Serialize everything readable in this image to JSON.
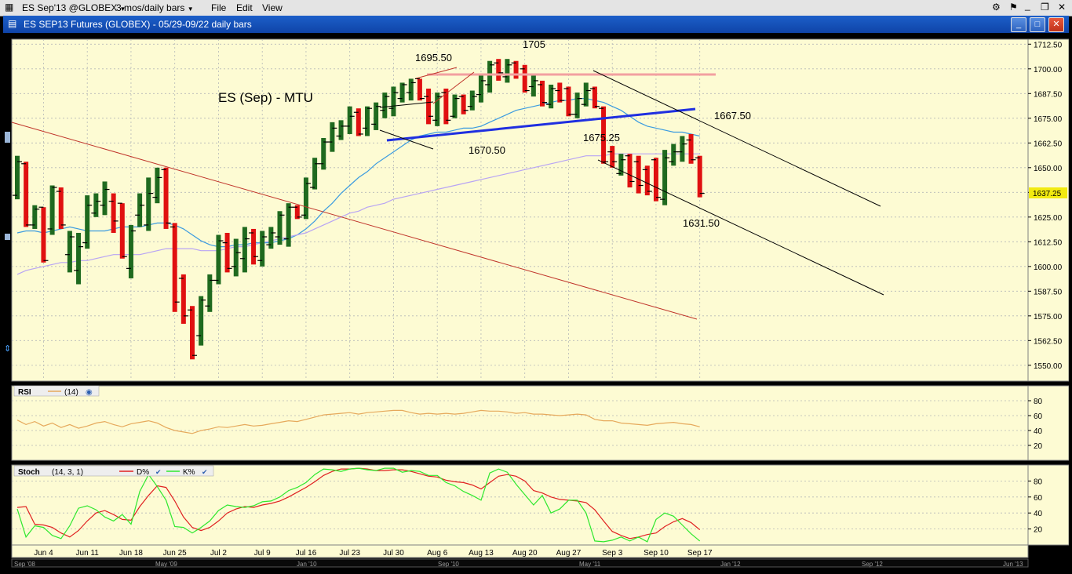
{
  "window": {
    "symbol_dropdown": "ES Sep'13 @GLOBEX",
    "period_dropdown": "3 mos/daily bars",
    "menu": [
      "File",
      "Edit",
      "View"
    ],
    "title": "ES SEP13 Futures (GLOBEX) - 05/29-09/22 daily bars"
  },
  "chart_data": [
    {
      "type": "ohlc-bar",
      "panel": "price",
      "annotation_title": "ES (Sep) - MTU",
      "yticks": [
        1712.5,
        1700.0,
        1687.5,
        1675.0,
        1662.5,
        1650.0,
        1637.5,
        1625.0,
        1612.5,
        1600.0,
        1587.5,
        1575.0,
        1562.5,
        1550.0
      ],
      "ylim": [
        1542,
        1715
      ],
      "last_price": "1637.25",
      "xticks": [
        "Jun 4",
        "Jun 11",
        "Jun 18",
        "Jun 25",
        "Jul 2",
        "Jul 9",
        "Jul 16",
        "Jul 23",
        "Jul 30",
        "Aug 6",
        "Aug 13",
        "Aug 20",
        "Aug 27",
        "Sep 3",
        "Sep 10",
        "Sep 17"
      ],
      "bottom_ticks": [
        "Sep '08",
        "May '09",
        "Jan '10",
        "Sep '10",
        "May '11",
        "Jan '12",
        "Sep '12",
        "Jun '13"
      ],
      "bars": [
        {
          "h": 1656,
          "l": 1634,
          "o": 1636,
          "c": 1653,
          "dir": "up"
        },
        {
          "h": 1653,
          "l": 1620,
          "o": 1652,
          "c": 1621,
          "dir": "down"
        },
        {
          "h": 1631,
          "l": 1619,
          "o": 1621,
          "c": 1629,
          "dir": "up"
        },
        {
          "h": 1630,
          "l": 1602,
          "o": 1630,
          "c": 1603,
          "dir": "down"
        },
        {
          "h": 1641,
          "l": 1616,
          "o": 1619,
          "c": 1640,
          "dir": "up"
        },
        {
          "h": 1640,
          "l": 1619,
          "o": 1638,
          "c": 1621,
          "dir": "down"
        },
        {
          "h": 1618,
          "l": 1597,
          "o": 1606,
          "c": 1615,
          "dir": "up"
        },
        {
          "h": 1617,
          "l": 1591,
          "o": 1598,
          "c": 1610,
          "dir": "up"
        },
        {
          "h": 1636,
          "l": 1609,
          "o": 1612,
          "c": 1631,
          "dir": "up"
        },
        {
          "h": 1637,
          "l": 1625,
          "o": 1627,
          "c": 1633,
          "dir": "up"
        },
        {
          "h": 1643,
          "l": 1626,
          "o": 1631,
          "c": 1639,
          "dir": "up"
        },
        {
          "h": 1637,
          "l": 1617,
          "o": 1633,
          "c": 1623,
          "dir": "down"
        },
        {
          "h": 1632,
          "l": 1604,
          "o": 1632,
          "c": 1605,
          "dir": "down"
        },
        {
          "h": 1621,
          "l": 1594,
          "o": 1599,
          "c": 1618,
          "dir": "up"
        },
        {
          "h": 1637,
          "l": 1620,
          "o": 1626,
          "c": 1631,
          "dir": "up"
        },
        {
          "h": 1645,
          "l": 1618,
          "o": 1621,
          "c": 1637,
          "dir": "up"
        },
        {
          "h": 1650,
          "l": 1632,
          "o": 1635,
          "c": 1645,
          "dir": "up"
        },
        {
          "h": 1650,
          "l": 1619,
          "o": 1649,
          "c": 1622,
          "dir": "down"
        },
        {
          "h": 1622,
          "l": 1577,
          "o": 1620,
          "c": 1582,
          "dir": "down"
        },
        {
          "h": 1596,
          "l": 1571,
          "o": 1594,
          "c": 1575,
          "dir": "down"
        },
        {
          "h": 1580,
          "l": 1553,
          "o": 1578,
          "c": 1555,
          "dir": "down"
        },
        {
          "h": 1585,
          "l": 1560,
          "o": 1565,
          "c": 1583,
          "dir": "up"
        },
        {
          "h": 1596,
          "l": 1577,
          "o": 1580,
          "c": 1593,
          "dir": "up"
        },
        {
          "h": 1616,
          "l": 1591,
          "o": 1593,
          "c": 1613,
          "dir": "up"
        },
        {
          "h": 1617,
          "l": 1597,
          "o": 1612,
          "c": 1599,
          "dir": "down"
        },
        {
          "h": 1614,
          "l": 1595,
          "o": 1600,
          "c": 1607,
          "dir": "up"
        },
        {
          "h": 1620,
          "l": 1597,
          "o": 1604,
          "c": 1614,
          "dir": "up"
        },
        {
          "h": 1619,
          "l": 1601,
          "o": 1617,
          "c": 1605,
          "dir": "down"
        },
        {
          "h": 1618,
          "l": 1600,
          "o": 1603,
          "c": 1615,
          "dir": "up"
        },
        {
          "h": 1620,
          "l": 1609,
          "o": 1611,
          "c": 1617,
          "dir": "up"
        },
        {
          "h": 1628,
          "l": 1611,
          "o": 1615,
          "c": 1626,
          "dir": "up"
        },
        {
          "h": 1632,
          "l": 1610,
          "o": 1614,
          "c": 1630,
          "dir": "up"
        },
        {
          "h": 1631,
          "l": 1624,
          "o": 1630,
          "c": 1625,
          "dir": "down"
        },
        {
          "h": 1645,
          "l": 1624,
          "o": 1626,
          "c": 1642,
          "dir": "up"
        },
        {
          "h": 1655,
          "l": 1639,
          "o": 1640,
          "c": 1652,
          "dir": "up"
        },
        {
          "h": 1665,
          "l": 1649,
          "o": 1652,
          "c": 1663,
          "dir": "up"
        },
        {
          "h": 1673,
          "l": 1658,
          "o": 1663,
          "c": 1670,
          "dir": "up"
        },
        {
          "h": 1674,
          "l": 1664,
          "o": 1666,
          "c": 1671,
          "dir": "up"
        },
        {
          "h": 1681,
          "l": 1667,
          "o": 1671,
          "c": 1676,
          "dir": "up"
        },
        {
          "h": 1680,
          "l": 1666,
          "o": 1678,
          "c": 1667,
          "dir": "down"
        },
        {
          "h": 1681,
          "l": 1666,
          "o": 1670,
          "c": 1680,
          "dir": "up"
        },
        {
          "h": 1683,
          "l": 1669,
          "o": 1672,
          "c": 1681,
          "dir": "up"
        },
        {
          "h": 1688,
          "l": 1675,
          "o": 1679,
          "c": 1686,
          "dir": "up"
        },
        {
          "h": 1691,
          "l": 1676,
          "o": 1680,
          "c": 1688,
          "dir": "up"
        },
        {
          "h": 1693,
          "l": 1683,
          "o": 1685,
          "c": 1692,
          "dir": "up"
        },
        {
          "h": 1695,
          "l": 1684,
          "o": 1688,
          "c": 1693,
          "dir": "up"
        },
        {
          "h": 1695,
          "l": 1684,
          "o": 1695,
          "c": 1685,
          "dir": "down"
        },
        {
          "h": 1690,
          "l": 1672,
          "o": 1686,
          "c": 1676,
          "dir": "down"
        },
        {
          "h": 1688,
          "l": 1671,
          "o": 1674,
          "c": 1686,
          "dir": "up"
        },
        {
          "h": 1690,
          "l": 1672,
          "o": 1688,
          "c": 1674,
          "dir": "down"
        },
        {
          "h": 1687,
          "l": 1675,
          "o": 1676,
          "c": 1685,
          "dir": "up"
        },
        {
          "h": 1687,
          "l": 1677,
          "o": 1686,
          "c": 1679,
          "dir": "down"
        },
        {
          "h": 1689,
          "l": 1679,
          "o": 1681,
          "c": 1686,
          "dir": "up"
        },
        {
          "h": 1697,
          "l": 1683,
          "o": 1687,
          "c": 1694,
          "dir": "up"
        },
        {
          "h": 1704,
          "l": 1688,
          "o": 1692,
          "c": 1702,
          "dir": "up"
        },
        {
          "h": 1705,
          "l": 1694,
          "o": 1703,
          "c": 1698,
          "dir": "down"
        },
        {
          "h": 1705,
          "l": 1693,
          "o": 1696,
          "c": 1702,
          "dir": "up"
        },
        {
          "h": 1704,
          "l": 1695,
          "o": 1703,
          "c": 1697,
          "dir": "down"
        },
        {
          "h": 1702,
          "l": 1688,
          "o": 1700,
          "c": 1689,
          "dir": "down"
        },
        {
          "h": 1697,
          "l": 1686,
          "o": 1691,
          "c": 1694,
          "dir": "up"
        },
        {
          "h": 1694,
          "l": 1681,
          "o": 1692,
          "c": 1683,
          "dir": "down"
        },
        {
          "h": 1692,
          "l": 1680,
          "o": 1682,
          "c": 1690,
          "dir": "up"
        },
        {
          "h": 1693,
          "l": 1683,
          "o": 1689,
          "c": 1684,
          "dir": "down"
        },
        {
          "h": 1691,
          "l": 1676,
          "o": 1690,
          "c": 1677,
          "dir": "down"
        },
        {
          "h": 1688,
          "l": 1675,
          "o": 1677,
          "c": 1685,
          "dir": "up"
        },
        {
          "h": 1693,
          "l": 1681,
          "o": 1682,
          "c": 1689,
          "dir": "up"
        },
        {
          "h": 1691,
          "l": 1680,
          "o": 1690,
          "c": 1681,
          "dir": "down"
        },
        {
          "h": 1681,
          "l": 1652,
          "o": 1680,
          "c": 1653,
          "dir": "down"
        },
        {
          "h": 1661,
          "l": 1650,
          "o": 1658,
          "c": 1653,
          "dir": "down"
        },
        {
          "h": 1657,
          "l": 1646,
          "o": 1647,
          "c": 1654,
          "dir": "up"
        },
        {
          "h": 1657,
          "l": 1640,
          "o": 1656,
          "c": 1643,
          "dir": "down"
        },
        {
          "h": 1656,
          "l": 1637,
          "o": 1653,
          "c": 1641,
          "dir": "down"
        },
        {
          "h": 1651,
          "l": 1636,
          "o": 1649,
          "c": 1638,
          "dir": "down"
        },
        {
          "h": 1655,
          "l": 1633,
          "o": 1654,
          "c": 1635,
          "dir": "down"
        },
        {
          "h": 1659,
          "l": 1631,
          "o": 1634,
          "c": 1655,
          "dir": "up"
        },
        {
          "h": 1662,
          "l": 1651,
          "o": 1653,
          "c": 1658,
          "dir": "up"
        },
        {
          "h": 1666,
          "l": 1653,
          "o": 1658,
          "c": 1662,
          "dir": "up"
        },
        {
          "h": 1667,
          "l": 1652,
          "o": 1664,
          "c": 1654,
          "dir": "down"
        },
        {
          "h": 1656,
          "l": 1635,
          "o": 1655,
          "c": 1637,
          "dir": "down"
        }
      ],
      "moving_averages": [
        {
          "name": "ma-short",
          "color": "#3b9be0",
          "values": [
            1617,
            1618,
            1618,
            1617,
            1618,
            1619,
            1620,
            1619,
            1618,
            1618,
            1618,
            1619,
            1620,
            1620,
            1620,
            1621,
            1622,
            1622,
            1621,
            1619,
            1616,
            1613,
            1611,
            1610,
            1610,
            1611,
            1611,
            1612,
            1612,
            1612,
            1613,
            1614,
            1616,
            1619,
            1623,
            1628,
            1632,
            1637,
            1641,
            1645,
            1648,
            1652,
            1655,
            1658,
            1661,
            1664,
            1666,
            1667,
            1668,
            1668,
            1669,
            1670,
            1670,
            1671,
            1673,
            1675,
            1677,
            1679,
            1680,
            1681,
            1682,
            1683,
            1684,
            1684,
            1685,
            1685,
            1684,
            1683,
            1681,
            1679,
            1676,
            1673,
            1671,
            1670,
            1669,
            1668,
            1668,
            1667,
            1666
          ]
        },
        {
          "name": "ma-long",
          "color": "#b8a4f4",
          "values": [
            1596,
            1598,
            1599,
            1600,
            1601,
            1602,
            1602,
            1603,
            1603,
            1604,
            1605,
            1606,
            1606,
            1606,
            1606,
            1607,
            1608,
            1609,
            1609,
            1609,
            1609,
            1608,
            1608,
            1608,
            1609,
            1610,
            1610,
            1611,
            1612,
            1613,
            1614,
            1615,
            1616,
            1617,
            1619,
            1621,
            1623,
            1625,
            1627,
            1628,
            1630,
            1631,
            1632,
            1634,
            1635,
            1636,
            1637,
            1638,
            1639,
            1640,
            1641,
            1642,
            1643,
            1644,
            1645,
            1646,
            1647,
            1648,
            1649,
            1650,
            1651,
            1652,
            1653,
            1654,
            1655,
            1656,
            1656,
            1656,
            1657,
            1657,
            1657,
            1657,
            1657,
            1657,
            1657,
            1657,
            1657,
            1657,
            1657
          ]
        }
      ],
      "annotations": [
        "1705",
        "1695.50",
        "1670.50",
        "1675.25",
        "1667.50",
        "1631.50"
      ]
    },
    {
      "type": "line",
      "panel": "rsi",
      "label": "RSI",
      "param": "(14)",
      "yticks": [
        80,
        60,
        40,
        20
      ],
      "ylim": [
        0,
        100
      ],
      "series": [
        {
          "name": "RSI",
          "color": "#e6a95c",
          "values": [
            54,
            48,
            52,
            46,
            50,
            44,
            48,
            43,
            46,
            50,
            52,
            48,
            45,
            49,
            51,
            53,
            50,
            44,
            40,
            38,
            36,
            40,
            42,
            45,
            44,
            46,
            48,
            46,
            47,
            49,
            51,
            53,
            52,
            55,
            58,
            61,
            62,
            63,
            64,
            62,
            64,
            65,
            66,
            67,
            67,
            64,
            62,
            63,
            62,
            63,
            62,
            63,
            65,
            67,
            66,
            66,
            65,
            63,
            64,
            62,
            62,
            61,
            60,
            61,
            62,
            61,
            55,
            53,
            53,
            50,
            49,
            48,
            47,
            49,
            50,
            51,
            49,
            48,
            45
          ]
        }
      ]
    },
    {
      "type": "line",
      "panel": "stochastic",
      "label": "Stoch",
      "param": "(14, 3, 1)",
      "yticks": [
        80,
        60,
        40,
        20
      ],
      "ylim": [
        0,
        100
      ],
      "series": [
        {
          "name": "D%",
          "color": "#e02020",
          "values": [
            47,
            48,
            26,
            25,
            22,
            15,
            10,
            18,
            30,
            40,
            43,
            38,
            32,
            31,
            48,
            62,
            74,
            72,
            55,
            35,
            22,
            18,
            22,
            30,
            40,
            45,
            48,
            47,
            50,
            52,
            55,
            60,
            66,
            72,
            79,
            87,
            92,
            95,
            95,
            96,
            95,
            93,
            93,
            94,
            94,
            92,
            89,
            86,
            85,
            81,
            79,
            78,
            75,
            70,
            78,
            86,
            88,
            86,
            80,
            68,
            65,
            60,
            57,
            56,
            55,
            53,
            44,
            30,
            17,
            12,
            8,
            10,
            13,
            15,
            23,
            29,
            33,
            28,
            19
          ]
        },
        {
          "name": "K%",
          "color": "#2ee82e",
          "values": [
            45,
            10,
            24,
            22,
            12,
            8,
            24,
            46,
            49,
            44,
            35,
            30,
            38,
            26,
            67,
            88,
            73,
            56,
            23,
            22,
            15,
            22,
            30,
            43,
            50,
            48,
            47,
            49,
            54,
            55,
            60,
            68,
            72,
            78,
            88,
            95,
            94,
            92,
            95,
            96,
            94,
            93,
            96,
            96,
            91,
            93,
            92,
            87,
            87,
            78,
            74,
            67,
            62,
            56,
            90,
            95,
            91,
            76,
            63,
            50,
            62,
            40,
            45,
            56,
            56,
            40,
            5,
            4,
            6,
            10,
            5,
            10,
            4,
            32,
            40,
            36,
            25,
            14,
            5
          ]
        }
      ]
    }
  ]
}
